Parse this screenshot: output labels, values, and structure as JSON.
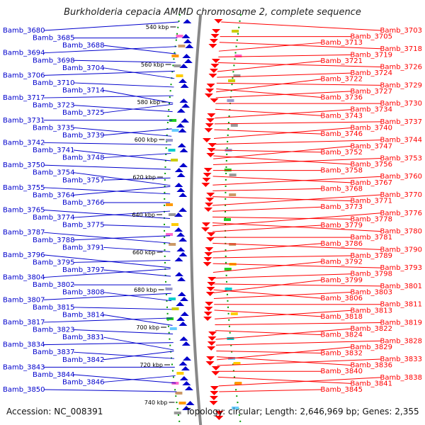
{
  "title": "Burkholderia cepacia AMMD chromosome 2, complete sequence",
  "accession_label": "Accession: NC_008391",
  "summary_label": "Topology: circular; Length: 2,646,969 bp; Genes: 2,355",
  "colors": {
    "reverse_strand": "#0000cc",
    "forward_strand": "#ff0000",
    "backbone": "#888888",
    "tick_dots": "#009900"
  },
  "scale_ticks": [
    "540 kbp",
    "560 kbp",
    "580 kbp",
    "600 kbp",
    "620 kbp",
    "640 kbp",
    "660 kbp",
    "680 kbp",
    "700 kbp",
    "720 kbp",
    "740 kbp"
  ],
  "left_labels": [
    "Bamb_3680",
    "Bamb_3685",
    "Bamb_3688",
    "Bamb_3694",
    "Bamb_3698",
    "Bamb_3704",
    "Bamb_3706",
    "Bamb_3710",
    "Bamb_3714",
    "Bamb_3717",
    "Bamb_3723",
    "Bamb_3725",
    "Bamb_3731",
    "Bamb_3735",
    "Bamb_3739",
    "Bamb_3742",
    "Bamb_3741",
    "Bamb_3748",
    "Bamb_3750",
    "Bamb_3754",
    "Bamb_3757",
    "Bamb_3755",
    "Bamb_3764",
    "Bamb_3766",
    "Bamb_3765",
    "Bamb_3774",
    "Bamb_3775",
    "Bamb_3787",
    "Bamb_3788",
    "Bamb_3791",
    "Bamb_3796",
    "Bamb_3795",
    "Bamb_3797",
    "Bamb_3804",
    "Bamb_3802",
    "Bamb_3808",
    "Bamb_3807",
    "Bamb_3815",
    "Bamb_3814",
    "Bamb_3817",
    "Bamb_3823",
    "Bamb_3831",
    "Bamb_3834",
    "Bamb_3837",
    "Bamb_3842",
    "Bamb_3843",
    "Bamb_3844",
    "Bamb_3846",
    "Bamb_3850"
  ],
  "right_labels": [
    "Bamb_3703",
    "Bamb_3705",
    "Bamb_3713",
    "Bamb_3718",
    "Bamb_3719",
    "Bamb_3721",
    "Bamb_3726",
    "Bamb_3724",
    "Bamb_3722",
    "Bamb_3729",
    "Bamb_3727",
    "Bamb_3736",
    "Bamb_3730",
    "Bamb_3734",
    "Bamb_3743",
    "Bamb_3737",
    "Bamb_3740",
    "Bamb_3746",
    "Bamb_3744",
    "Bamb_3747",
    "Bamb_3752",
    "Bamb_3753",
    "Bamb_3756",
    "Bamb_3758",
    "Bamb_3760",
    "Bamb_3767",
    "Bamb_3768",
    "Bamb_3770",
    "Bamb_3771",
    "Bamb_3773",
    "Bamb_3776",
    "Bamb_3778",
    "Bamb_3779",
    "Bamb_3780",
    "Bamb_3781",
    "Bamb_3786",
    "Bamb_3790",
    "Bamb_3789",
    "Bamb_3792",
    "Bamb_3793",
    "Bamb_3798",
    "Bamb_3799",
    "Bamb_3801",
    "Bamb_3803",
    "Bamb_3806",
    "Bamb_3811",
    "Bamb_3813",
    "Bamb_3818",
    "Bamb_3819",
    "Bamb_3822",
    "Bamb_3824",
    "Bamb_3828",
    "Bamb_3829",
    "Bamb_3832",
    "Bamb_3833",
    "Bamb_3836",
    "Bamb_3840",
    "Bamb_3838",
    "Bamb_3841",
    "Bamb_3845"
  ]
}
